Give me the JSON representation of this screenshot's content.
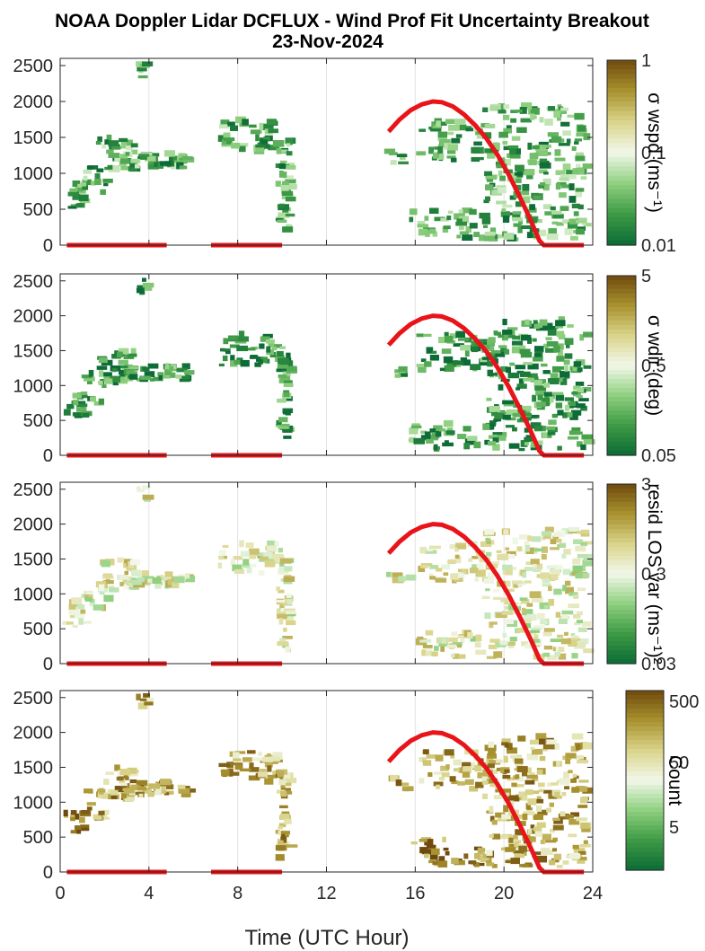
{
  "title_line1": "NOAA Doppler Lidar DCFLUX - Wind Prof Fit Uncertainty Breakout",
  "title_line2": "23-Nov-2024",
  "xlabel": "Time (UTC Hour)",
  "colors": {
    "sun_curve": "#e8141a",
    "colormap": [
      "#0c6b36",
      "#3e9a45",
      "#8fd07f",
      "#f2f8ea",
      "#d9d48a",
      "#a8922e",
      "#6f4a0e"
    ]
  },
  "chart_data": [
    {
      "type": "heatmap",
      "panel": "wspd",
      "xlim": [
        0,
        24
      ],
      "ylim": [
        0,
        2600
      ],
      "x_ticks": [
        "0",
        "4",
        "8",
        "12",
        "16",
        "20",
        "24"
      ],
      "y_ticks": [
        "0",
        "500",
        "1000",
        "1500",
        "2000",
        "2500"
      ],
      "grid": true,
      "colorbar": {
        "label": "σ wspd (ms⁻¹)",
        "ticks": [
          "1",
          "0.1",
          "0.01"
        ],
        "scale": "log"
      }
    },
    {
      "type": "heatmap",
      "panel": "wdir",
      "xlim": [
        0,
        24
      ],
      "ylim": [
        0,
        2600
      ],
      "x_ticks": [
        "0",
        "4",
        "8",
        "12",
        "16",
        "20",
        "24"
      ],
      "y_ticks": [
        "0",
        "500",
        "1000",
        "1500",
        "2000",
        "2500"
      ],
      "grid": true,
      "colorbar": {
        "label": "σ wdir (deg)",
        "ticks": [
          "5",
          "0.5",
          "0.05"
        ],
        "scale": "log"
      }
    },
    {
      "type": "heatmap",
      "panel": "resid",
      "xlim": [
        0,
        24
      ],
      "ylim": [
        0,
        2600
      ],
      "x_ticks": [
        "0",
        "4",
        "8",
        "12",
        "16",
        "20",
        "24"
      ],
      "y_ticks": [
        "0",
        "500",
        "1000",
        "1500",
        "2000",
        "2500"
      ],
      "grid": true,
      "colorbar": {
        "label": "resid LOS var (ms⁻¹)²",
        "ticks": [
          "3",
          "0.3",
          "0.03"
        ],
        "scale": "log"
      }
    },
    {
      "type": "heatmap",
      "panel": "count",
      "xlim": [
        0,
        24
      ],
      "ylim": [
        0,
        2600
      ],
      "x_ticks": [
        "0",
        "4",
        "8",
        "12",
        "16",
        "20",
        "24"
      ],
      "y_ticks": [
        "0",
        "500",
        "1000",
        "1500",
        "2000",
        "2500"
      ],
      "grid": true,
      "colorbar": {
        "label": "Count",
        "ticks": [
          "500",
          "50",
          "5"
        ],
        "scale": "log"
      }
    }
  ],
  "sun_curve": {
    "x": [
      14.8,
      15.3,
      15.8,
      16.3,
      16.8,
      17.2,
      17.7,
      18.2,
      18.7,
      19.2,
      19.7,
      20.2,
      20.7,
      21.2,
      21.6,
      21.8,
      22.5,
      23.5
    ],
    "y": [
      1580,
      1750,
      1880,
      1960,
      2000,
      1990,
      1930,
      1820,
      1670,
      1490,
      1260,
      990,
      680,
      350,
      60,
      0,
      0,
      0
    ]
  },
  "zero_segments": [
    [
      0.3,
      4.8
    ],
    [
      6.8,
      10.0
    ],
    [
      21.8,
      23.6
    ]
  ]
}
